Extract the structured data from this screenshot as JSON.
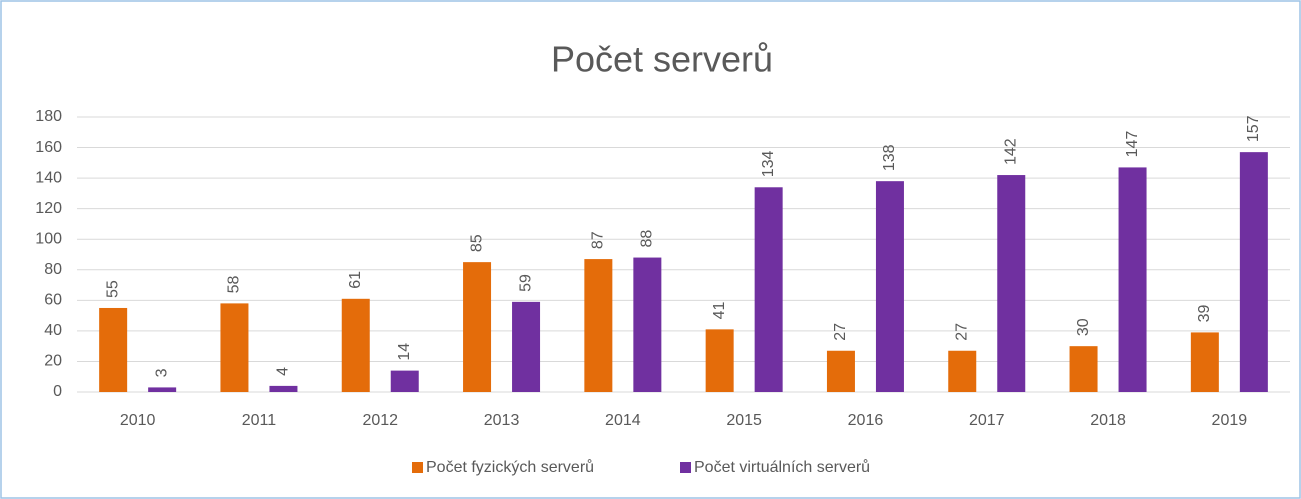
{
  "chart_data": {
    "type": "bar",
    "title": "Počet serverů",
    "categories": [
      "2010",
      "2011",
      "2012",
      "2013",
      "2014",
      "2015",
      "2016",
      "2017",
      "2018",
      "2019"
    ],
    "series": [
      {
        "name": "Počet fyzických serverů",
        "color": "#e46c0a",
        "values": [
          55,
          58,
          61,
          85,
          87,
          41,
          27,
          27,
          30,
          39
        ]
      },
      {
        "name": "Počet virtuálních serverů",
        "color": "#7030a0",
        "values": [
          3,
          4,
          14,
          59,
          88,
          134,
          138,
          142,
          147,
          157
        ]
      }
    ],
    "ylim": [
      0,
      180
    ],
    "yticks": [
      0,
      20,
      40,
      60,
      80,
      100,
      120,
      140,
      160,
      180
    ],
    "grid": true,
    "legend": "bottom"
  }
}
